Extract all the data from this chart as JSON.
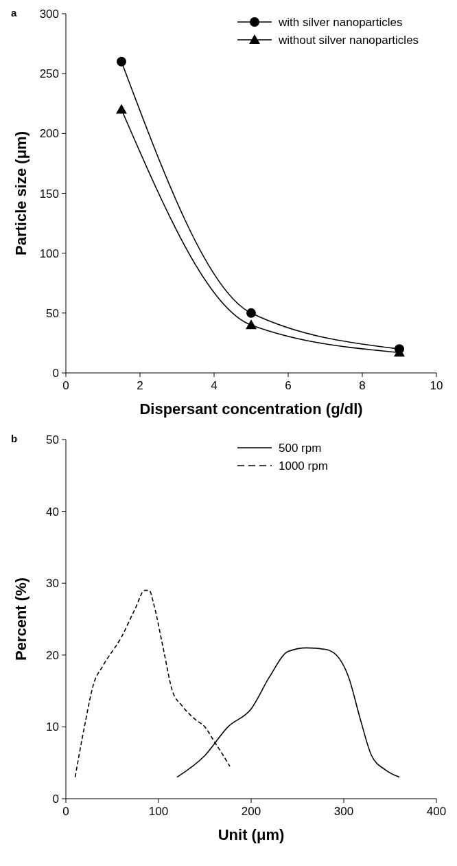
{
  "chart_data": [
    {
      "type": "line",
      "title": "a",
      "xlabel": "Dispersant concentration (g/dl)",
      "ylabel": "Particle size (μm)",
      "xlim": [
        0,
        10
      ],
      "xticks": [
        0,
        2,
        4,
        6,
        8,
        10
      ],
      "ylim": [
        0,
        300
      ],
      "yticks": [
        0,
        50,
        100,
        150,
        200,
        250,
        300
      ],
      "legend": "top right",
      "series": [
        {
          "name": "with silver nanoparticles",
          "color": "#000000",
          "marker": "circle",
          "line_style": "solid",
          "x": [
            1.5,
            5,
            9
          ],
          "values": [
            260,
            50,
            20
          ]
        },
        {
          "name": "without silver nanoparticles",
          "color": "#000000",
          "marker": "triangle",
          "line_style": "solid",
          "x": [
            1.5,
            5,
            9
          ],
          "values": [
            220,
            40,
            17
          ]
        }
      ]
    },
    {
      "type": "line",
      "title": "b",
      "xlabel": "Unit (μm)",
      "ylabel": "Percent (%)",
      "xlim": [
        0,
        400
      ],
      "xticks": [
        0,
        100,
        200,
        300,
        400
      ],
      "ylim": [
        0,
        50
      ],
      "yticks": [
        0,
        10,
        20,
        30,
        40,
        50
      ],
      "legend": "top right",
      "series": [
        {
          "name": "500 rpm",
          "color": "#000000",
          "line_style": "solid",
          "x": [
            120,
            150,
            175,
            200,
            220,
            240,
            260,
            280,
            292,
            305,
            318,
            330,
            345,
            360
          ],
          "values": [
            3,
            6,
            10,
            12.5,
            17,
            20.5,
            21,
            20.8,
            20,
            17,
            11,
            6,
            4,
            3
          ]
        },
        {
          "name": "1000 rpm",
          "color": "#000000",
          "line_style": "dashed",
          "x": [
            10,
            20,
            30,
            40,
            60,
            75,
            85,
            90,
            95,
            105,
            115,
            125,
            140,
            150,
            160,
            170,
            177
          ],
          "values": [
            3,
            10,
            16,
            18.5,
            22.5,
            26.5,
            29,
            29,
            27,
            21,
            15,
            13,
            11,
            10,
            8,
            6,
            4.5
          ]
        }
      ]
    }
  ]
}
